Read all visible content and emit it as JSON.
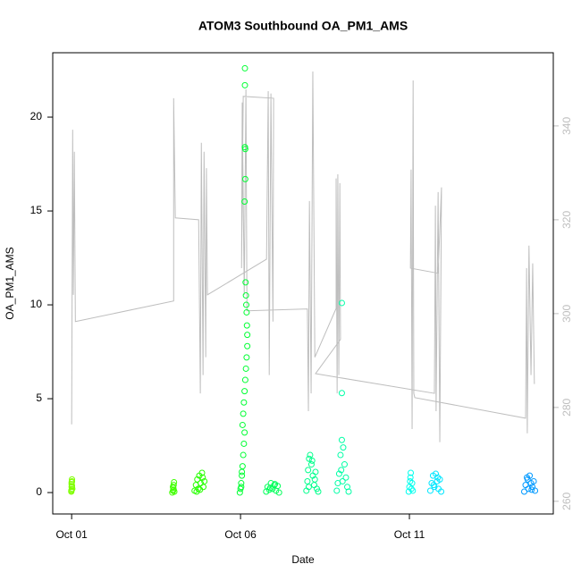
{
  "chart_data": {
    "type": "scatter",
    "title": "ATOM3 Southbound OA_PM1_AMS",
    "x_label": "Date",
    "y_label": "OA_PM1_AMS",
    "xlim": [
      0.44,
      15.26
    ],
    "xticks": [
      {
        "value": 1,
        "label": "Oct 01"
      },
      {
        "value": 6,
        "label": "Oct 06"
      },
      {
        "value": 11,
        "label": "Oct 11"
      }
    ],
    "ylim": [
      -1.14,
      23.43
    ],
    "yticks": [
      0,
      5,
      10,
      15,
      20
    ],
    "y2lim": [
      257.3,
      355.6
    ],
    "y2ticks": [
      260,
      280,
      300,
      320,
      340
    ],
    "series": [
      {
        "color": "#7fff00",
        "x": [
          0.99,
          1.0,
          1.0,
          1.0,
          1.01,
          1.01,
          1.02,
          1.0,
          1.01,
          0.99
        ],
        "values": [
          0.05,
          0.15,
          0.3,
          0.45,
          0.6,
          0.7,
          0.2,
          0.55,
          0.35,
          0.1
        ]
      },
      {
        "color": "#40ff00",
        "x": [
          3.98,
          4.0,
          4.01,
          4.02,
          4.03,
          4.0,
          4.02,
          4.04
        ],
        "values": [
          0.0,
          0.1,
          0.25,
          0.4,
          0.55,
          0.3,
          0.15,
          0.05
        ]
      },
      {
        "color": "#26ff00",
        "x": [
          4.64,
          4.68,
          4.72,
          4.75,
          4.78,
          4.82,
          4.86,
          4.9,
          4.93,
          4.7,
          4.8,
          4.88
        ],
        "values": [
          0.1,
          0.4,
          0.7,
          0.2,
          0.9,
          0.5,
          1.05,
          0.3,
          0.6,
          0.05,
          0.15,
          0.8
        ]
      },
      {
        "color": "#00ff33",
        "x": [
          5.98,
          6.0,
          6.02,
          6.04,
          6.06,
          6.08,
          6.1,
          6.12,
          6.13,
          6.13,
          6.14,
          6.14,
          6.12,
          6.15,
          6.16,
          6.17,
          6.18,
          6.19,
          6.2,
          6.2,
          6.18,
          6.16,
          6.14,
          6.12,
          6.1,
          6.08,
          6.06,
          6.04,
          6.02,
          6.13
        ],
        "values": [
          0.0,
          0.2,
          0.5,
          0.9,
          1.4,
          2.0,
          2.6,
          3.2,
          22.6,
          21.7,
          18.3,
          16.7,
          15.5,
          11.2,
          10.5,
          10.0,
          9.6,
          8.9,
          8.4,
          7.8,
          7.2,
          6.6,
          6.0,
          5.4,
          4.8,
          4.2,
          3.6,
          1.1,
          0.3,
          18.4
        ]
      },
      {
        "color": "#00ff59",
        "x": [
          6.76,
          6.8,
          6.85,
          6.9,
          6.95,
          7.0,
          7.05,
          7.1,
          7.14,
          6.88,
          7.02
        ],
        "values": [
          0.05,
          0.3,
          0.15,
          0.5,
          0.2,
          0.4,
          0.1,
          0.35,
          0.0,
          0.25,
          0.45
        ]
      },
      {
        "color": "#00ff8c",
        "x": [
          7.95,
          7.98,
          8.0,
          8.03,
          8.06,
          8.1,
          8.14,
          8.18,
          8.22,
          8.26,
          8.3,
          8.02,
          8.12,
          8.2
        ],
        "values": [
          0.1,
          0.6,
          1.2,
          1.8,
          2.0,
          1.5,
          0.9,
          0.4,
          1.1,
          0.2,
          0.05,
          0.3,
          1.7,
          0.7
        ]
      },
      {
        "color": "#00ffa6",
        "x": [
          8.85,
          8.88,
          8.92,
          8.96,
          9.0,
          9.0,
          9.0,
          9.04,
          9.08,
          9.12,
          9.16,
          9.2,
          8.98,
          9.02
        ],
        "values": [
          0.1,
          0.5,
          1.0,
          2.0,
          2.8,
          5.3,
          10.1,
          2.4,
          1.5,
          0.8,
          0.3,
          0.05,
          1.2,
          0.6
        ]
      },
      {
        "color": "#00ffee",
        "x": [
          10.98,
          11.0,
          11.02,
          11.04,
          11.06,
          11.08,
          11.1,
          11.03
        ],
        "values": [
          0.05,
          0.3,
          0.6,
          1.05,
          0.2,
          0.5,
          0.1,
          0.8
        ]
      },
      {
        "color": "#00e6ff",
        "x": [
          11.62,
          11.66,
          11.7,
          11.74,
          11.78,
          11.82,
          11.86,
          11.9,
          11.94,
          11.72,
          11.84
        ],
        "values": [
          0.1,
          0.5,
          0.9,
          0.3,
          1.0,
          0.6,
          0.2,
          0.7,
          0.05,
          0.4,
          0.8
        ]
      },
      {
        "color": "#0099ff",
        "x": [
          14.4,
          14.44,
          14.48,
          14.52,
          14.56,
          14.6,
          14.64,
          14.68,
          14.72,
          14.5,
          14.62
        ],
        "values": [
          0.05,
          0.4,
          0.8,
          0.2,
          0.9,
          0.5,
          0.3,
          0.6,
          0.1,
          0.7,
          0.15
        ]
      },
      {
        "type": "line",
        "axis": "y2",
        "color": "#bebebe",
        "x": [
          1.0,
          1.03,
          1.05,
          1.08,
          1.11,
          4.02,
          4.02,
          4.07,
          4.76,
          4.81,
          4.84,
          4.89,
          4.92,
          4.97,
          4.99,
          5.02,
          6.77,
          6.82,
          6.85,
          6.9,
          6.96,
          6.98,
          6.08,
          6.03,
          6.05,
          6.11,
          6.16,
          6.19,
          7.98,
          8.01,
          8.04,
          8.09,
          8.14,
          8.2,
          8.83,
          8.83,
          8.86,
          8.88,
          8.91,
          8.94,
          8.96,
          8.22,
          11.74,
          11.77,
          11.79,
          11.85,
          11.9,
          11.95,
          11.85,
          11.03,
          11.05,
          11.08,
          11.11,
          11.13,
          11.16,
          14.44,
          14.47,
          14.49,
          14.54,
          14.6,
          14.65,
          14.7
        ],
        "values": [
          276.4,
          339.2,
          304,
          334.5,
          298.3,
          302.7,
          345.9,
          320.4,
          320,
          283,
          336.4,
          286.9,
          334.5,
          290.7,
          331,
          304,
          311.6,
          347.4,
          286.9,
          346.9,
          298.3,
          345.9,
          346.3,
          309.7,
          345,
          304,
          347.8,
          300.6,
          301,
          279.2,
          324,
          283,
          351.6,
          290.7,
          301.1,
          328.8,
          283,
          329.7,
          286.9,
          327.8,
          294.5,
          287.2,
          283,
          323,
          279.2,
          325.9,
          272.6,
          326.9,
          308.6,
          309.7,
          330.7,
          275.4,
          349.7,
          283,
          282.1,
          277.7,
          309.7,
          274.5,
          314.5,
          286.9,
          310.7,
          285
        ]
      }
    ]
  }
}
